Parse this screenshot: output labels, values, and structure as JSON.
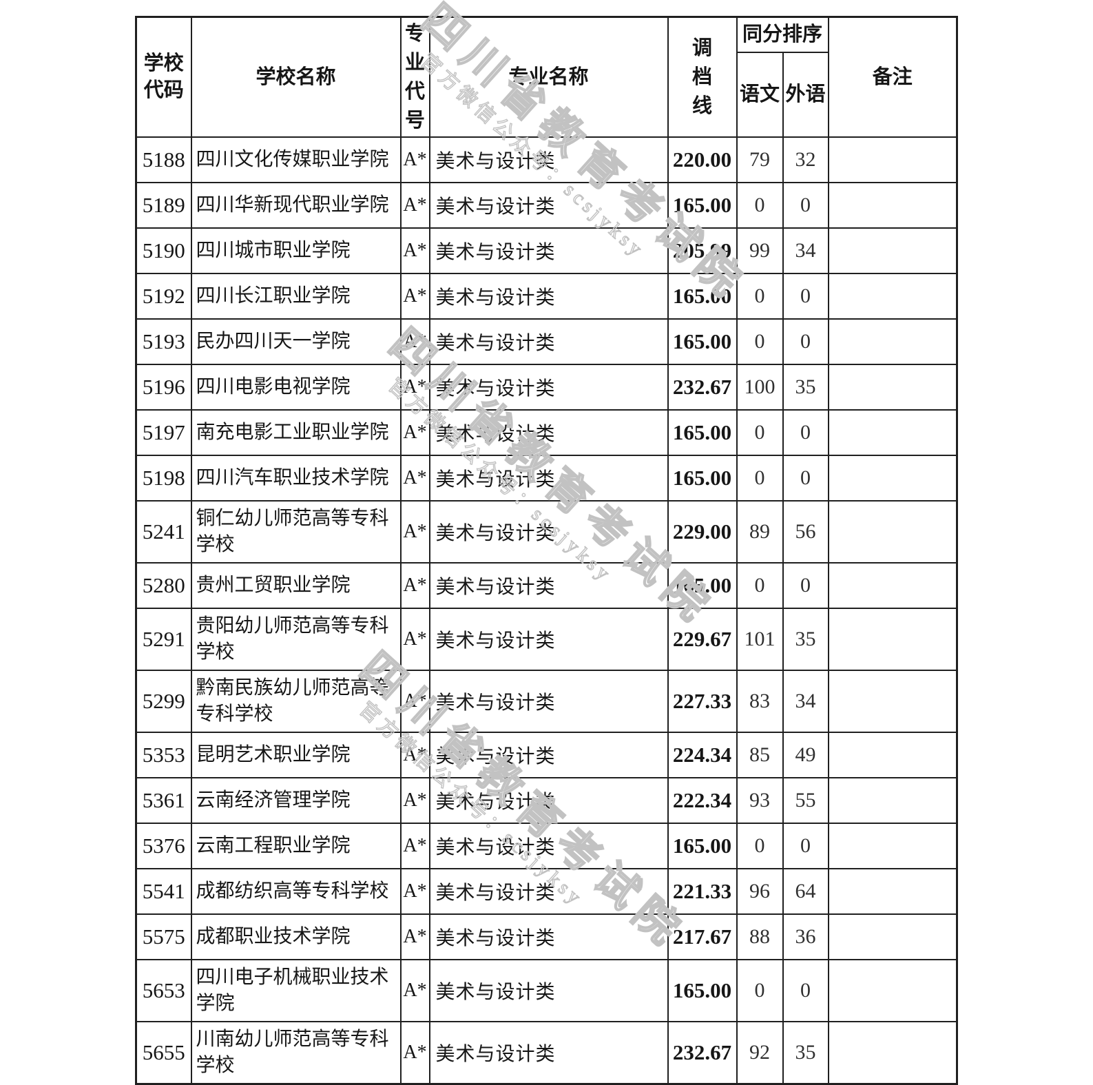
{
  "table": {
    "headers": {
      "school_code": "学校代码",
      "school_name": "学校名称",
      "major_code": "专业代号",
      "major_name": "专业名称",
      "score_line": "调档线",
      "same_score_sort": "同分排序",
      "chinese": "语文",
      "foreign_lang": "外语",
      "remark": "备注"
    },
    "rows": [
      {
        "code": "5188",
        "school": "四川文化传媒职业学院",
        "major_code": "A*",
        "major": "美术与设计类",
        "score": "220.00",
        "chinese": "79",
        "foreign": "32",
        "remark": ""
      },
      {
        "code": "5189",
        "school": "四川华新现代职业学院",
        "major_code": "A*",
        "major": "美术与设计类",
        "score": "165.00",
        "chinese": "0",
        "foreign": "0",
        "remark": ""
      },
      {
        "code": "5190",
        "school": "四川城市职业学院",
        "major_code": "A*",
        "major": "美术与设计类",
        "score": "205.99",
        "chinese": "99",
        "foreign": "34",
        "remark": ""
      },
      {
        "code": "5192",
        "school": "四川长江职业学院",
        "major_code": "A*",
        "major": "美术与设计类",
        "score": "165.00",
        "chinese": "0",
        "foreign": "0",
        "remark": ""
      },
      {
        "code": "5193",
        "school": "民办四川天一学院",
        "major_code": "A*",
        "major": "美术与设计类",
        "score": "165.00",
        "chinese": "0",
        "foreign": "0",
        "remark": ""
      },
      {
        "code": "5196",
        "school": "四川电影电视学院",
        "major_code": "A*",
        "major": "美术与设计类",
        "score": "232.67",
        "chinese": "100",
        "foreign": "35",
        "remark": ""
      },
      {
        "code": "5197",
        "school": "南充电影工业职业学院",
        "major_code": "A*",
        "major": "美术与设计类",
        "score": "165.00",
        "chinese": "0",
        "foreign": "0",
        "remark": ""
      },
      {
        "code": "5198",
        "school": "四川汽车职业技术学院",
        "major_code": "A*",
        "major": "美术与设计类",
        "score": "165.00",
        "chinese": "0",
        "foreign": "0",
        "remark": ""
      },
      {
        "code": "5241",
        "school": "铜仁幼儿师范高等专科学校",
        "major_code": "A*",
        "major": "美术与设计类",
        "score": "229.00",
        "chinese": "89",
        "foreign": "56",
        "remark": ""
      },
      {
        "code": "5280",
        "school": "贵州工贸职业学院",
        "major_code": "A*",
        "major": "美术与设计类",
        "score": "165.00",
        "chinese": "0",
        "foreign": "0",
        "remark": ""
      },
      {
        "code": "5291",
        "school": "贵阳幼儿师范高等专科学校",
        "major_code": "A*",
        "major": "美术与设计类",
        "score": "229.67",
        "chinese": "101",
        "foreign": "35",
        "remark": ""
      },
      {
        "code": "5299",
        "school": "黔南民族幼儿师范高等专科学校",
        "major_code": "A*",
        "major": "美术与设计类",
        "score": "227.33",
        "chinese": "83",
        "foreign": "34",
        "remark": ""
      },
      {
        "code": "5353",
        "school": "昆明艺术职业学院",
        "major_code": "A*",
        "major": "美术与设计类",
        "score": "224.34",
        "chinese": "85",
        "foreign": "49",
        "remark": ""
      },
      {
        "code": "5361",
        "school": "云南经济管理学院",
        "major_code": "A*",
        "major": "美术与设计类",
        "score": "222.34",
        "chinese": "93",
        "foreign": "55",
        "remark": ""
      },
      {
        "code": "5376",
        "school": "云南工程职业学院",
        "major_code": "A*",
        "major": "美术与设计类",
        "score": "165.00",
        "chinese": "0",
        "foreign": "0",
        "remark": ""
      },
      {
        "code": "5541",
        "school": "成都纺织高等专科学校",
        "major_code": "A*",
        "major": "美术与设计类",
        "score": "221.33",
        "chinese": "96",
        "foreign": "64",
        "remark": ""
      },
      {
        "code": "5575",
        "school": "成都职业技术学院",
        "major_code": "A*",
        "major": "美术与设计类",
        "score": "217.67",
        "chinese": "88",
        "foreign": "36",
        "remark": ""
      },
      {
        "code": "5653",
        "school": "四川电子机械职业技术学院",
        "major_code": "A*",
        "major": "美术与设计类",
        "score": "165.00",
        "chinese": "0",
        "foreign": "0",
        "remark": ""
      },
      {
        "code": "5655",
        "school": "川南幼儿师范高等专科学校",
        "major_code": "A*",
        "major": "美术与设计类",
        "score": "232.67",
        "chinese": "92",
        "foreign": "35",
        "remark": ""
      }
    ]
  },
  "watermark": {
    "big_text": "四川省教育考试院",
    "small_text": "官方微信公众号：scsjyksy",
    "color": "#c7c7c7"
  }
}
